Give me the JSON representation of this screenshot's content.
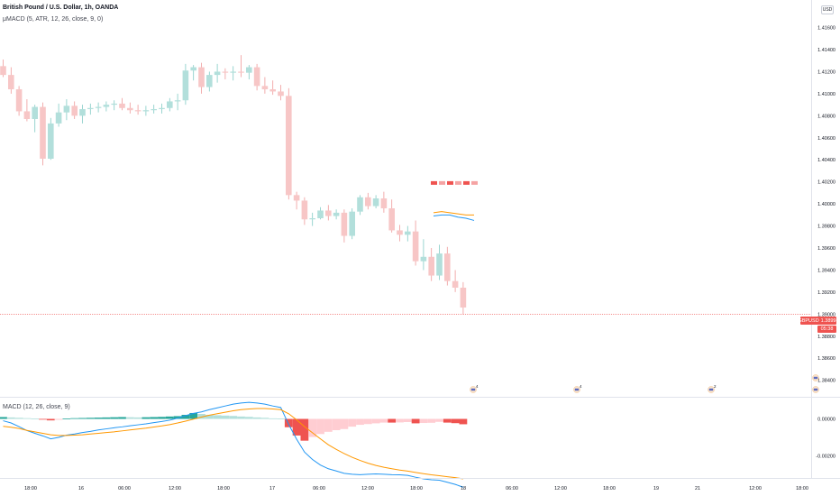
{
  "header": {
    "title": "British Pound / U.S. Dollar, 1h, OANDA",
    "indicator": "μMACD (5, ATR, 12, 26, close, 9, 0)",
    "currency": "USD"
  },
  "macd_panel": {
    "label": "MACD (12, 26, close, 9)"
  },
  "price_tag": {
    "symbol": "GBPUSD",
    "value": "1.38998",
    "countdown": "05:38"
  },
  "colors": {
    "up": "#b2dfdb",
    "down": "#f7c6c6",
    "hist_strong_up": "#26a69a",
    "hist_weak_up": "#b2dfdb",
    "hist_strong_down": "#ef5350",
    "hist_weak_down": "#ffcdd2",
    "macd_line": "#2196f3",
    "signal_line": "#ff9800",
    "price_line": "#ef5350"
  },
  "chart_data": [
    {
      "type": "candlestick",
      "title": "British Pound / U.S. Dollar, 1h, OANDA",
      "ylim": [
        1.3825,
        1.4185
      ],
      "y_ticks": [
        "1.41600",
        "1.41400",
        "1.41200",
        "1.41000",
        "1.40800",
        "1.40600",
        "1.40400",
        "1.40200",
        "1.40000",
        "1.39800",
        "1.39600",
        "1.39400",
        "1.39200",
        "1.39000",
        "1.38800",
        "1.38600",
        "1.38400"
      ],
      "x_ticks": [
        "18:00",
        "16",
        "06:00",
        "12:00",
        "18:00",
        "17",
        "06:00",
        "12:00",
        "18:00",
        "18",
        "06:00",
        "12:00",
        "18:00",
        "19",
        "21",
        "12:00",
        "18:00"
      ],
      "current_price": 1.38998,
      "candles": [
        [
          1.4125,
          1.4131,
          1.4115,
          1.4117
        ],
        [
          1.4117,
          1.4124,
          1.41,
          1.4104
        ],
        [
          1.4104,
          1.4107,
          1.408,
          1.4084
        ],
        [
          1.4084,
          1.4095,
          1.4075,
          1.4077
        ],
        [
          1.4077,
          1.409,
          1.4065,
          1.4088
        ],
        [
          1.4088,
          1.4092,
          1.4035,
          1.4041
        ],
        [
          1.4041,
          1.4078,
          1.404,
          1.4073
        ],
        [
          1.4073,
          1.4091,
          1.407,
          1.4083
        ],
        [
          1.4083,
          1.4095,
          1.4076,
          1.4089
        ],
        [
          1.4089,
          1.4093,
          1.4077,
          1.408
        ],
        [
          1.408,
          1.409,
          1.4073,
          1.4086
        ],
        [
          1.4086,
          1.4091,
          1.4081,
          1.4087
        ],
        [
          1.4087,
          1.4092,
          1.4083,
          1.4088
        ],
        [
          1.4088,
          1.4093,
          1.4084,
          1.409
        ],
        [
          1.409,
          1.4094,
          1.4085,
          1.4091
        ],
        [
          1.4091,
          1.4096,
          1.4085,
          1.4087
        ],
        [
          1.4087,
          1.4092,
          1.4082,
          1.4085
        ],
        [
          1.4085,
          1.409,
          1.4081,
          1.4084
        ],
        [
          1.4084,
          1.4089,
          1.408,
          1.4085
        ],
        [
          1.4085,
          1.409,
          1.4082,
          1.4086
        ],
        [
          1.4086,
          1.4091,
          1.4082,
          1.4087
        ],
        [
          1.4087,
          1.4096,
          1.4084,
          1.4093
        ],
        [
          1.4093,
          1.41,
          1.4085,
          1.4094
        ],
        [
          1.4094,
          1.4127,
          1.409,
          1.4121
        ],
        [
          1.4121,
          1.4126,
          1.4112,
          1.4124
        ],
        [
          1.4124,
          1.4128,
          1.41,
          1.4106
        ],
        [
          1.4106,
          1.412,
          1.4102,
          1.4117
        ],
        [
          1.4117,
          1.4127,
          1.411,
          1.412
        ],
        [
          1.412,
          1.4123,
          1.4113,
          1.4119
        ],
        [
          1.4119,
          1.4125,
          1.4112,
          1.412
        ],
        [
          1.412,
          1.4135,
          1.4115,
          1.4119
        ],
        [
          1.4119,
          1.4126,
          1.4113,
          1.4124
        ],
        [
          1.4124,
          1.4127,
          1.4103,
          1.4107
        ],
        [
          1.4107,
          1.4115,
          1.41,
          1.4104
        ],
        [
          1.4104,
          1.4112,
          1.4099,
          1.4102
        ],
        [
          1.4102,
          1.4108,
          1.4094,
          1.4098
        ],
        [
          1.4098,
          1.4105,
          1.4004,
          1.4008
        ],
        [
          1.4008,
          1.4011,
          1.3995,
          1.4003
        ],
        [
          1.4003,
          1.4006,
          1.3981,
          1.3986
        ],
        [
          1.3986,
          1.3992,
          1.398,
          1.3987
        ],
        [
          1.3987,
          1.3997,
          1.3986,
          1.3994
        ],
        [
          1.3994,
          1.3999,
          1.3985,
          1.3989
        ],
        [
          1.3989,
          1.3995,
          1.3986,
          1.3992
        ],
        [
          1.3992,
          1.3995,
          1.3965,
          1.3971
        ],
        [
          1.3971,
          1.3996,
          1.3968,
          1.3993
        ],
        [
          1.3993,
          1.4008,
          1.399,
          1.4006
        ],
        [
          1.4006,
          1.401,
          1.3995,
          1.3998
        ],
        [
          1.3998,
          1.4008,
          1.3996,
          1.4005
        ],
        [
          1.4005,
          1.4011,
          1.3992,
          1.3996
        ],
        [
          1.3996,
          1.4004,
          1.3974,
          1.3976
        ],
        [
          1.3976,
          1.3981,
          1.3966,
          1.3972
        ],
        [
          1.3972,
          1.398,
          1.3966,
          1.3975
        ],
        [
          1.3975,
          1.3985,
          1.3944,
          1.3948
        ],
        [
          1.3948,
          1.3968,
          1.394,
          1.3952
        ],
        [
          1.3952,
          1.396,
          1.393,
          1.3935
        ],
        [
          1.3935,
          1.3963,
          1.3931,
          1.3955
        ],
        [
          1.3955,
          1.3961,
          1.3926,
          1.393
        ],
        [
          1.393,
          1.394,
          1.392,
          1.3924
        ],
        [
          1.3924,
          1.3929,
          1.39,
          1.3906
        ]
      ]
    },
    {
      "type": "macd",
      "title": "MACD (12, 26, close, 9)",
      "ylim": [
        -0.0032,
        0.0011
      ],
      "y_ticks": [
        "0.00000",
        "-0.00200"
      ],
      "histogram": [
        0.0001,
        8e-05,
        6e-05,
        4e-05,
        2e-05,
        -3e-05,
        -8e-05,
        -5e-05,
        2e-05,
        4e-05,
        5e-05,
        6e-05,
        7e-05,
        8e-05,
        9e-05,
        0.0001,
        9e-05,
        8e-05,
        9e-05,
        0.0001,
        0.00011,
        0.00013,
        0.00015,
        0.00022,
        0.00032,
        0.00027,
        0.00022,
        0.0002,
        0.00018,
        0.00016,
        0.00013,
        0.00011,
        8e-05,
        6e-05,
        3e-05,
        2e-05,
        -0.00045,
        -0.0009,
        -0.00118,
        -0.00098,
        -0.00082,
        -0.0007,
        -0.00061,
        -0.00055,
        -0.00042,
        -0.00032,
        -0.00028,
        -0.00024,
        -0.0002,
        -0.0002,
        -0.00019,
        -0.00017,
        -0.00024,
        -0.00022,
        -0.00021,
        -0.00016,
        -0.0002,
        -0.00023,
        -0.00029
      ],
      "macd": [
        -0.0001,
        -0.00022,
        -0.00042,
        -0.00063,
        -0.00078,
        -0.00092,
        -0.00108,
        -0.001,
        -0.00088,
        -0.00082,
        -0.00074,
        -0.00068,
        -0.0006,
        -0.00054,
        -0.00048,
        -0.00043,
        -0.00037,
        -0.00032,
        -0.00027,
        -0.0002,
        -0.00014,
        -7e-05,
        4e-05,
        0.00018,
        0.0003,
        0.00038,
        0.0005,
        0.0006,
        0.0007,
        0.0008,
        0.00086,
        0.0009,
        0.00086,
        0.0008,
        0.0007,
        0.00062,
        -0.0003,
        -0.0011,
        -0.0018,
        -0.0022,
        -0.0025,
        -0.0027,
        -0.00282,
        -0.00295,
        -0.003,
        -0.00302,
        -0.003,
        -0.00298,
        -0.003,
        -0.00302,
        -0.00303,
        -0.00306,
        -0.00316,
        -0.00325,
        -0.0033,
        -0.00332,
        -0.00343,
        -0.00355,
        -0.0037
      ],
      "signal": [
        -0.0004,
        -0.00045,
        -0.00052,
        -0.00062,
        -0.0007,
        -0.00078,
        -0.00086,
        -0.0009,
        -0.0009,
        -0.00088,
        -0.00086,
        -0.00082,
        -0.00078,
        -0.00074,
        -0.0007,
        -0.00065,
        -0.0006,
        -0.00055,
        -0.0005,
        -0.00044,
        -0.00038,
        -0.00031,
        -0.00022,
        -0.00012,
        -1e-05,
        0.0001,
        0.0002,
        0.00028,
        0.00036,
        0.00044,
        0.0005,
        0.00054,
        0.00056,
        0.00056,
        0.00054,
        0.0005,
        0.00028,
        -5e-05,
        -0.00042,
        -0.00075,
        -0.00108,
        -0.0014,
        -0.00165,
        -0.00188,
        -0.00208,
        -0.00225,
        -0.0024,
        -0.00252,
        -0.00262,
        -0.0027,
        -0.00277,
        -0.00283,
        -0.0029,
        -0.00297,
        -0.00303,
        -0.00308,
        -0.00313,
        -0.00318,
        -0.00325
      ]
    }
  ],
  "projection": {
    "markers": [
      1.4019,
      1.4019,
      1.4019,
      1.4019,
      1.4019,
      1.4019
    ],
    "upper": [
      1.3992,
      1.3993,
      1.3992,
      1.3991,
      1.399,
      1.399
    ],
    "lower": [
      1.3989,
      1.399,
      1.399,
      1.3988,
      1.3987,
      1.3985
    ]
  },
  "events": [
    {
      "label": "4"
    },
    {
      "label": "4"
    },
    {
      "label": "2"
    },
    {
      "label": ""
    }
  ]
}
